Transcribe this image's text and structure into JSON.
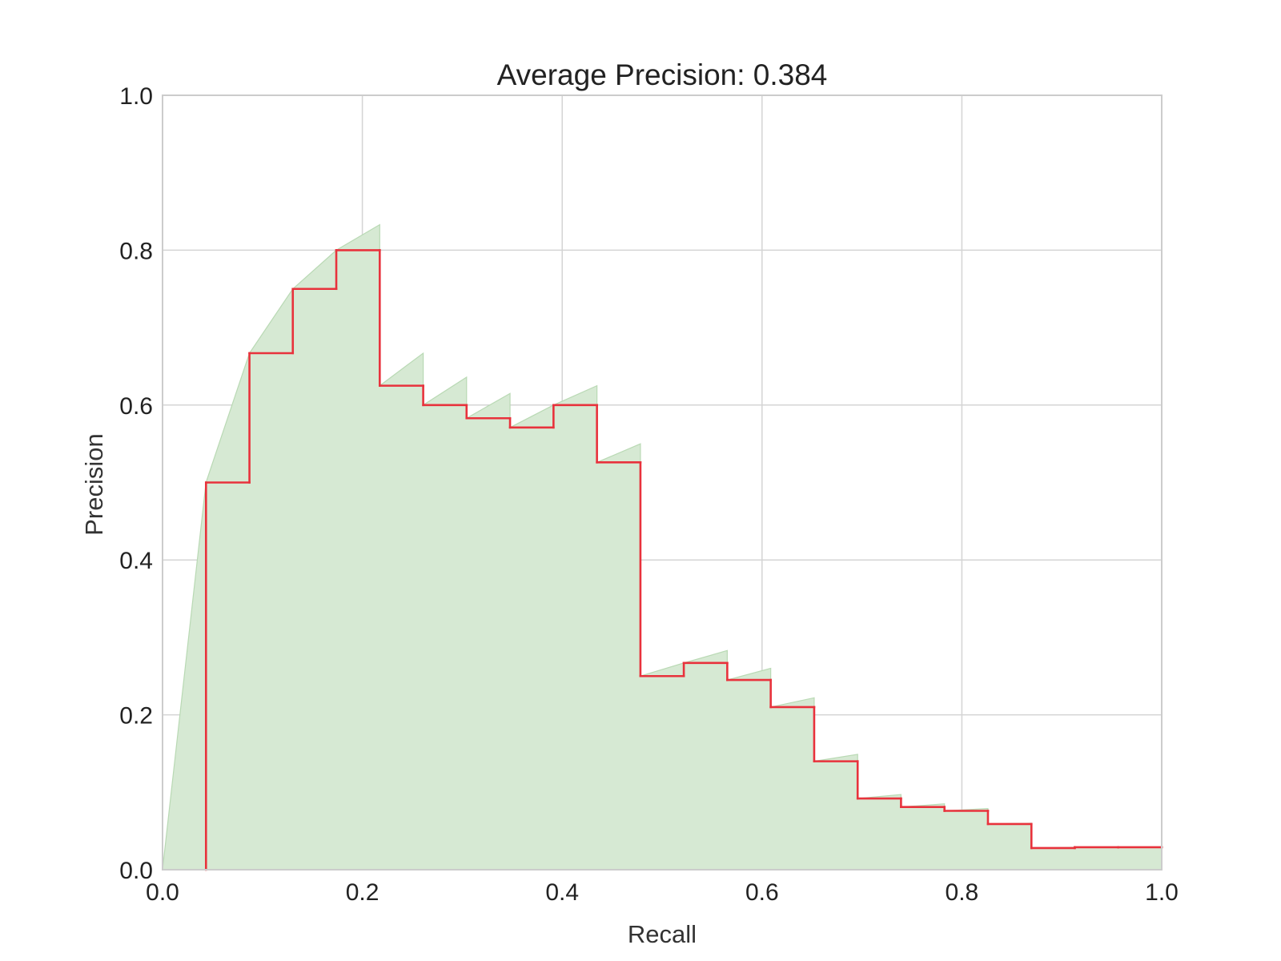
{
  "chart_data": {
    "type": "area",
    "title": "Average Precision: 0.384",
    "xlabel": "Recall",
    "ylabel": "Precision",
    "xlim": [
      0.0,
      1.0
    ],
    "ylim": [
      0.0,
      1.0
    ],
    "xticks": [
      "0.0",
      "0.2",
      "0.4",
      "0.6",
      "0.8",
      "1.0"
    ],
    "yticks": [
      "0.0",
      "0.2",
      "0.4",
      "0.6",
      "0.8",
      "1.0"
    ],
    "grid": true,
    "colors": {
      "step_line": "#e8323c",
      "fill": "#d6e9d3",
      "fill_edge": "#b9d9b4",
      "grid": "#d4d4d4",
      "frame": "#cccccc"
    },
    "series": [
      {
        "type": "step",
        "x": [
          0.0435,
          0.087,
          0.1304,
          0.1739,
          0.2174,
          0.2609,
          0.3043,
          0.3478,
          0.3913,
          0.4348,
          0.4783,
          0.5217,
          0.5652,
          0.6087,
          0.6522,
          0.6957,
          0.7391,
          0.7826,
          0.8261,
          0.8696,
          0.913,
          0.9565,
          1.0
        ],
        "y": [
          0.5,
          0.667,
          0.75,
          0.8,
          0.625,
          0.6,
          0.583,
          0.571,
          0.6,
          0.526,
          0.25,
          0.267,
          0.245,
          0.21,
          0.14,
          0.092,
          0.081,
          0.076,
          0.059,
          0.028,
          0.029,
          0.029,
          0.029
        ]
      },
      {
        "type": "area",
        "x": [
          0.0,
          0.0435,
          0.087,
          0.1304,
          0.1739,
          0.2174,
          0.2174,
          0.2609,
          0.2609,
          0.3043,
          0.3043,
          0.3478,
          0.3478,
          0.3913,
          0.4348,
          0.4348,
          0.4783,
          0.4783,
          0.5217,
          0.5652,
          0.5652,
          0.6087,
          0.6087,
          0.6522,
          0.6522,
          0.6957,
          0.6957,
          0.7391,
          0.7391,
          0.7826,
          0.7826,
          0.8261,
          0.8261,
          0.8696,
          0.8696,
          0.913,
          0.9565,
          1.0
        ],
        "y": [
          0.0,
          0.5,
          0.667,
          0.75,
          0.8,
          0.833,
          0.625,
          0.667,
          0.6,
          0.636,
          0.583,
          0.615,
          0.571,
          0.6,
          0.625,
          0.526,
          0.55,
          0.25,
          0.267,
          0.283,
          0.245,
          0.26,
          0.21,
          0.222,
          0.14,
          0.149,
          0.092,
          0.097,
          0.081,
          0.085,
          0.076,
          0.079,
          0.059,
          0.06,
          0.028,
          0.029,
          0.029,
          0.029
        ]
      }
    ]
  }
}
